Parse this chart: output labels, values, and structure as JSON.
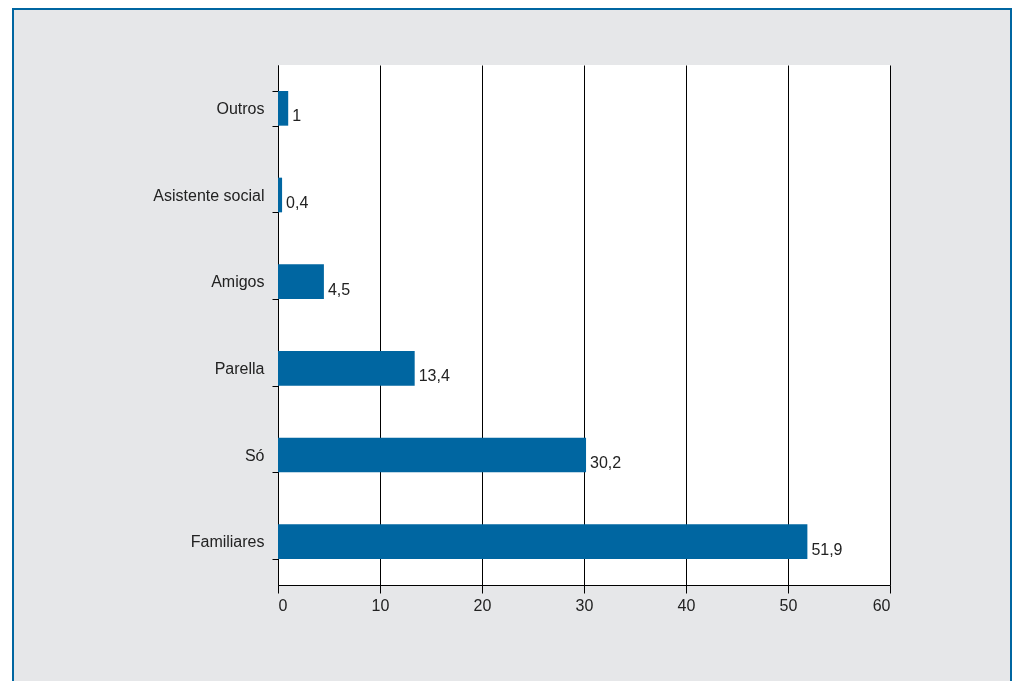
{
  "chart_data": {
    "type": "bar",
    "orientation": "horizontal",
    "categories": [
      "Outros",
      "Asistente social",
      "Amigos",
      "Parella",
      "Só",
      "Familiares"
    ],
    "values": [
      1,
      0.4,
      4.5,
      13.4,
      30.2,
      51.9
    ],
    "value_labels": [
      "1",
      "0,4",
      "4,5",
      "13,4",
      "30,2",
      "51,9"
    ],
    "color": "#0066a1",
    "xlim": [
      0,
      60
    ],
    "xticks": [
      0,
      10,
      20,
      30,
      40,
      50,
      60
    ],
    "grid": "x"
  }
}
